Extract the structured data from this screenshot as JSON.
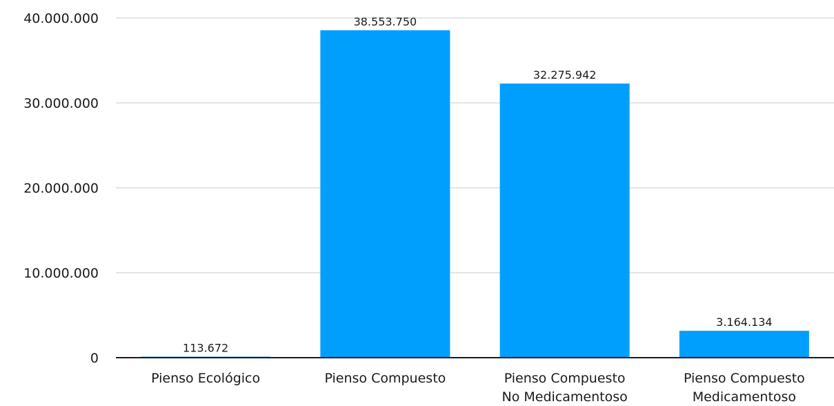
{
  "chart_data": {
    "type": "bar",
    "categories": [
      [
        "Pienso Ecológico"
      ],
      [
        "Pienso Compuesto"
      ],
      [
        "Pienso Compuesto",
        "No Medicamentoso"
      ],
      [
        "Pienso Compuesto",
        "Medicamentoso"
      ]
    ],
    "values": [
      113672,
      38553750,
      32275942,
      3164134
    ],
    "value_labels": [
      "113.672",
      "38.553.750",
      "32.275.942",
      "3.164.134"
    ],
    "y_ticks": [
      0,
      10000000,
      20000000,
      30000000,
      40000000
    ],
    "y_tick_labels": [
      "0",
      "10.000.000",
      "20.000.000",
      "30.000.000",
      "40.000.000"
    ],
    "ylim": [
      0,
      40000000
    ],
    "title": "",
    "xlabel": "",
    "ylabel": "",
    "grid": true,
    "legend": "none",
    "colors": {
      "bar": "#009ffd",
      "grid": "#c8c8c8",
      "axis": "#1a1a1a"
    }
  }
}
